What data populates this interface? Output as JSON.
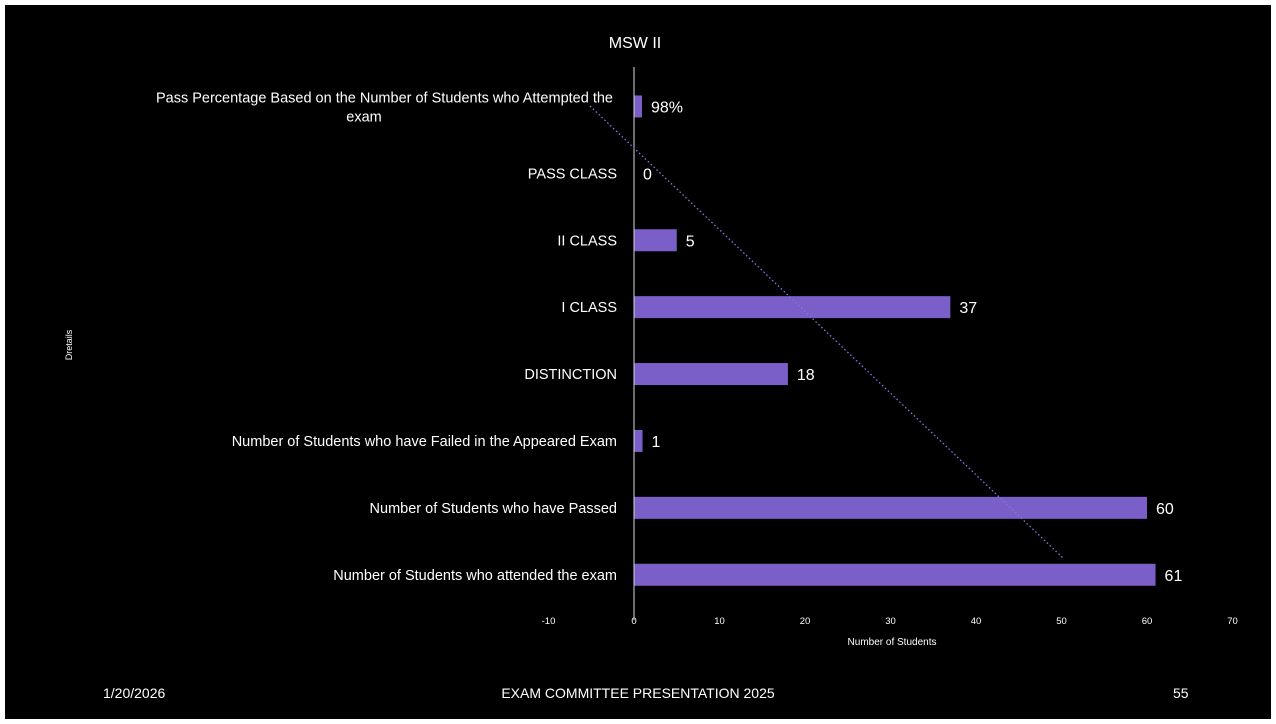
{
  "chart_data": {
    "type": "bar",
    "orientation": "horizontal",
    "title": "MSW II",
    "xlabel": "Number of Students",
    "ylabel": "Dretails",
    "xlim": [
      -10,
      70
    ],
    "xticks": [
      "-10",
      "0",
      "10",
      "20",
      "30",
      "40",
      "50",
      "60",
      "70"
    ],
    "categories": [
      "Pass Percentage Based on the Number of Students who Attempted the exam",
      "PASS CLASS",
      "II CLASS",
      "I CLASS",
      "DISTINCTION",
      "Number of Students who have Failed in the Appeared Exam",
      "Number of Students who have Passed",
      "Number of Students who attended the exam"
    ],
    "values": [
      0.98,
      0,
      5,
      37,
      18,
      1,
      60,
      61
    ],
    "data_labels": [
      "98%",
      "0",
      "5",
      "37",
      "18",
      "1",
      "60",
      "61"
    ],
    "bar_color": "#7b5fc8",
    "trendline": {
      "style": "dotted",
      "color": "#7f78e6"
    },
    "grid": false,
    "legend": "none"
  },
  "footer": {
    "date": "1/20/2026",
    "center": "EXAM COMMITTEE PRESENTATION 2025",
    "page": "55"
  }
}
